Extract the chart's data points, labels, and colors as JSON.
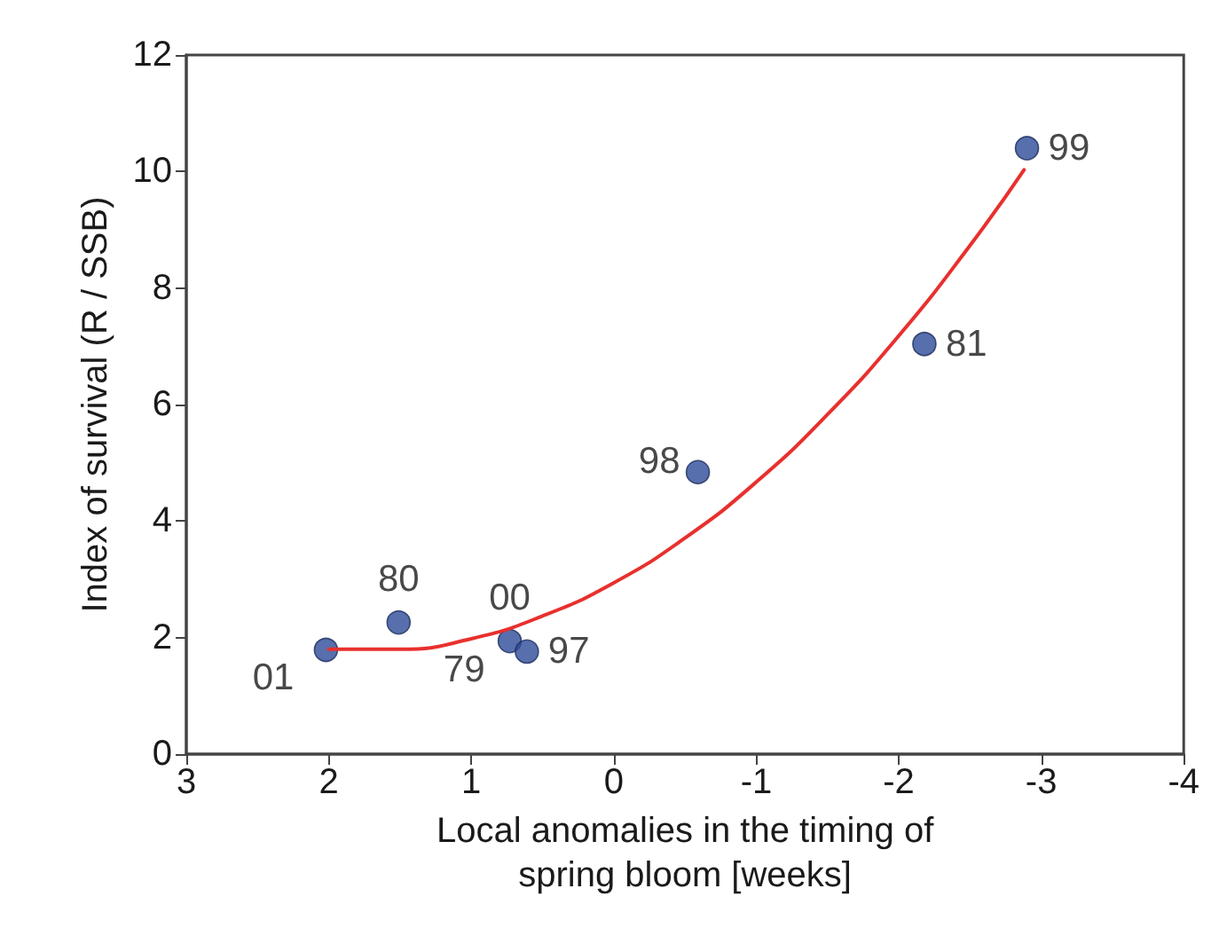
{
  "chart_data": {
    "type": "scatter",
    "xlabel": "Local anomalies in the timing of\nspring bloom [weeks]",
    "ylabel": "Index of survival (R / SSB)",
    "xlim": [
      3,
      -4
    ],
    "xticks": [
      3,
      2,
      1,
      0,
      -1,
      -2,
      -3,
      -4
    ],
    "ylim": [
      0,
      12
    ],
    "yticks": [
      0,
      2,
      4,
      6,
      8,
      10,
      12
    ],
    "marker": "circle",
    "series": [
      {
        "type": "line",
        "color": "#e8302e",
        "marker": "none",
        "line_style": "solid",
        "x": [
          2.0,
          1.5,
          1.0,
          0.5,
          0,
          -0.5,
          -1.0,
          -1.5,
          -2.0,
          -2.5,
          -2.88
        ],
        "values": [
          1.8,
          1.8,
          1.98,
          2.37,
          2.94,
          3.71,
          4.67,
          5.83,
          7.18,
          8.73,
          10.03
        ]
      },
      {
        "color": "#2e4b9a",
        "x": [
          2.02,
          1.51,
          0.73,
          0.61,
          -0.59,
          -2.18,
          -2.9
        ],
        "values": [
          1.79,
          2.26,
          1.94,
          1.76,
          4.84,
          7.04,
          10.4
        ]
      }
    ],
    "annotations": [
      {
        "text": "01",
        "x": 2.02,
        "y": 1.79
      },
      {
        "text": "80",
        "x": 1.51,
        "y": 2.26
      },
      {
        "text": "00",
        "x": 0.73,
        "y": 1.94
      },
      {
        "text": "79",
        "x": 0.73,
        "y": 1.94
      },
      {
        "text": "97",
        "x": 0.61,
        "y": 1.76
      },
      {
        "text": "98",
        "x": -0.59,
        "y": 4.84
      },
      {
        "text": "81",
        "x": -2.18,
        "y": 7.04
      },
      {
        "text": "99",
        "x": -2.9,
        "y": 10.4
      }
    ]
  }
}
